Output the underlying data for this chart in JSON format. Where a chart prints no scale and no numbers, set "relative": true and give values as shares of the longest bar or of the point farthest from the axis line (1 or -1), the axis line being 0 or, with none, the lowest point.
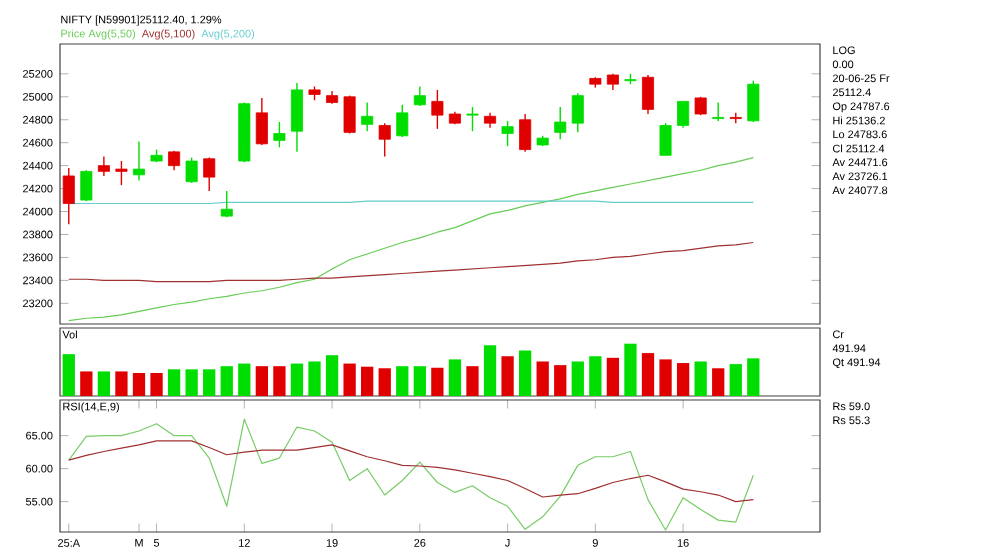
{
  "chart_data": [
    {
      "type": "candlestick",
      "title": "NIFTY [N59901]25112.40, 1.29%",
      "categories": [
        null,
        null,
        null,
        null,
        null,
        null,
        null,
        null,
        null,
        null,
        null,
        null,
        null,
        null,
        null,
        null,
        null,
        null,
        null,
        null,
        null,
        null,
        null,
        null,
        null,
        null,
        null,
        null,
        null,
        null,
        null,
        null,
        null,
        null,
        null,
        null,
        null,
        null,
        null,
        null
      ],
      "ohlc": [
        [
          24310,
          24380,
          23890,
          24070
        ],
        [
          24100,
          24360,
          24090,
          24350
        ],
        [
          24400,
          24480,
          24310,
          24350
        ],
        [
          24370,
          24440,
          24230,
          24350
        ],
        [
          24320,
          24610,
          24270,
          24370
        ],
        [
          24440,
          24540,
          24430,
          24490
        ],
        [
          24520,
          24530,
          24360,
          24400
        ],
        [
          24260,
          24470,
          24250,
          24440
        ],
        [
          24460,
          24470,
          24180,
          24300
        ],
        [
          23960,
          24180,
          23950,
          24020
        ],
        [
          24440,
          24950,
          24430,
          24940
        ],
        [
          24860,
          24990,
          24580,
          24590
        ],
        [
          24620,
          24780,
          24560,
          24680
        ],
        [
          24700,
          25120,
          24520,
          25060
        ],
        [
          25060,
          25090,
          24970,
          25020
        ],
        [
          25010,
          25050,
          24940,
          24950
        ],
        [
          25000,
          25010,
          24680,
          24690
        ],
        [
          24760,
          24950,
          24700,
          24830
        ],
        [
          24750,
          24770,
          24480,
          24630
        ],
        [
          24660,
          24930,
          24650,
          24860
        ],
        [
          24930,
          25090,
          24920,
          25010
        ],
        [
          24960,
          25060,
          24720,
          24840
        ],
        [
          24850,
          24870,
          24760,
          24770
        ],
        [
          24840,
          24910,
          24700,
          24850
        ],
        [
          24830,
          24860,
          24730,
          24770
        ],
        [
          24680,
          24790,
          24570,
          24740
        ],
        [
          24800,
          24850,
          24520,
          24540
        ],
        [
          24580,
          24660,
          24570,
          24640
        ],
        [
          24690,
          24910,
          24630,
          24780
        ],
        [
          24770,
          25030,
          24690,
          25010
        ],
        [
          25160,
          25170,
          25080,
          25110
        ],
        [
          25190,
          25200,
          25060,
          25110
        ],
        [
          25140,
          25200,
          25110,
          25150
        ],
        [
          25170,
          25190,
          24850,
          24890
        ],
        [
          24490,
          24770,
          24490,
          24750
        ],
        [
          24750,
          24960,
          24730,
          24960
        ],
        [
          24990,
          25000,
          24840,
          24850
        ],
        [
          24810,
          24950,
          24790,
          24820
        ],
        [
          24820,
          24860,
          24770,
          24810
        ],
        [
          24790,
          25140,
          24780,
          25110
        ]
      ],
      "colors": [
        "#e00000",
        "#00dd00",
        "#e00000",
        "#e00000",
        "#00dd00",
        "#00dd00",
        "#e00000",
        "#00dd00",
        "#e00000",
        "#00dd00",
        "#00dd00",
        "#e00000",
        "#00dd00",
        "#00dd00",
        "#e00000",
        "#e00000",
        "#e00000",
        "#00dd00",
        "#e00000",
        "#00dd00",
        "#00dd00",
        "#e00000",
        "#e00000",
        "#00dd00",
        "#e00000",
        "#00dd00",
        "#e00000",
        "#00dd00",
        "#00dd00",
        "#00dd00",
        "#e00000",
        "#e00000",
        "#00dd00",
        "#e00000",
        "#00dd00",
        "#00dd00",
        "#e00000",
        "#00dd00",
        "#e00000",
        "#00dd00"
      ],
      "series": [
        {
          "name": "Price Avg(5,50)",
          "type": "line",
          "color": "#66cc55",
          "values": [
            23050,
            23070,
            23080,
            23100,
            23130,
            23160,
            23190,
            23210,
            23240,
            23260,
            23290,
            23310,
            23340,
            23380,
            23410,
            23500,
            23580,
            23630,
            23680,
            23730,
            23770,
            23820,
            23860,
            23920,
            23980,
            24010,
            24050,
            24080,
            24110,
            24150,
            24180,
            24210,
            24240,
            24270,
            24300,
            24330,
            24360,
            24400,
            24430,
            24470
          ]
        },
        {
          "name": "Avg(5,100)",
          "type": "line",
          "color": "#a03030",
          "values": [
            23410,
            23410,
            23400,
            23400,
            23400,
            23390,
            23390,
            23390,
            23390,
            23400,
            23400,
            23400,
            23400,
            23410,
            23420,
            23420,
            23430,
            23440,
            23450,
            23460,
            23470,
            23480,
            23490,
            23500,
            23510,
            23520,
            23530,
            23540,
            23550,
            23570,
            23580,
            23600,
            23610,
            23630,
            23650,
            23660,
            23680,
            23700,
            23710,
            23730
          ]
        },
        {
          "name": "Avg(5,200)",
          "type": "line",
          "color": "#66cccc",
          "values": [
            24070,
            24070,
            24070,
            24070,
            24070,
            24070,
            24070,
            24070,
            24070,
            24080,
            24080,
            24080,
            24080,
            24080,
            24080,
            24080,
            24080,
            24090,
            24090,
            24090,
            24090,
            24090,
            24090,
            24090,
            24090,
            24090,
            24090,
            24090,
            24090,
            24090,
            24090,
            24080,
            24080,
            24080,
            24080,
            24080,
            24080,
            24080,
            24080,
            24080
          ]
        }
      ],
      "ylim": [
        23020,
        25460
      ],
      "yticks": [
        23200,
        23400,
        23600,
        23800,
        24000,
        24200,
        24400,
        24600,
        24800,
        25000,
        25200
      ],
      "tick_labels": "y",
      "annotations": [
        "LOG",
        "0.00",
        "20-06-25 Fr",
        "25112.4",
        "Op 24787.6",
        "Hi 25136.2",
        "Lo 24783.6",
        "Cl 25112.4",
        "Av 24471.6",
        "Av 23726.1",
        "Av 24077.8"
      ]
    },
    {
      "type": "bar",
      "title": "Vol",
      "relative": true,
      "categories": [
        null,
        null,
        null,
        null,
        null,
        null,
        null,
        null,
        null,
        null,
        null,
        null,
        null,
        null,
        null,
        null,
        null,
        null,
        null,
        null,
        null,
        null,
        null,
        null,
        null,
        null,
        null,
        null,
        null,
        null,
        null,
        null,
        null,
        null,
        null,
        null,
        null,
        null,
        null,
        null
      ],
      "values": [
        0.8,
        0.47,
        0.47,
        0.47,
        0.44,
        0.44,
        0.51,
        0.51,
        0.51,
        0.57,
        0.62,
        0.57,
        0.57,
        0.62,
        0.66,
        0.78,
        0.62,
        0.56,
        0.53,
        0.57,
        0.57,
        0.54,
        0.7,
        0.57,
        0.97,
        0.76,
        0.87,
        0.66,
        0.59,
        0.66,
        0.76,
        0.73,
        1,
        0.82,
        0.7,
        0.63,
        0.66,
        0.53,
        0.61,
        0.72
      ],
      "colors": [
        "#00dd00",
        "#e00000",
        "#00dd00",
        "#e00000",
        "#e00000",
        "#e00000",
        "#00dd00",
        "#00dd00",
        "#00dd00",
        "#00dd00",
        "#00dd00",
        "#e00000",
        "#e00000",
        "#00dd00",
        "#00dd00",
        "#00dd00",
        "#e00000",
        "#e00000",
        "#e00000",
        "#00dd00",
        "#00dd00",
        "#e00000",
        "#00dd00",
        "#e00000",
        "#00dd00",
        "#e00000",
        "#00dd00",
        "#e00000",
        "#e00000",
        "#00dd00",
        "#00dd00",
        "#e00000",
        "#00dd00",
        "#e00000",
        "#e00000",
        "#e00000",
        "#00dd00",
        "#e00000",
        "#00dd00",
        "#00dd00"
      ],
      "tick_labels": false,
      "annotations": [
        "Cr",
        "491.94",
        "Qt 491.94"
      ]
    },
    {
      "type": "line",
      "title": "RSI(14,E,9)",
      "categories": [
        "25:A",
        null,
        null,
        null,
        "M",
        "5",
        null,
        null,
        null,
        null,
        "12",
        null,
        null,
        null,
        null,
        "19",
        null,
        null,
        null,
        null,
        "26",
        null,
        null,
        null,
        null,
        "J",
        null,
        null,
        null,
        null,
        "9",
        null,
        null,
        null,
        null,
        "16",
        null,
        null,
        null,
        null
      ],
      "series": [
        {
          "color": "#77cc66",
          "values": [
            61.3,
            64.9,
            65,
            65,
            65.7,
            66.8,
            65,
            65,
            61.6,
            54.3,
            67.5,
            60.8,
            61.6,
            66.3,
            65.7,
            64,
            58.2,
            60,
            56,
            58.2,
            61,
            57.9,
            56.4,
            57.4,
            55.6,
            54.3,
            50.8,
            52.7,
            55.8,
            60.5,
            61.8,
            61.8,
            62.6,
            55.3,
            50.7,
            55.6,
            53.8,
            52.2,
            51.9,
            59
          ]
        },
        {
          "color": "#a03030",
          "values": [
            61.3,
            62,
            62.6,
            63.1,
            63.6,
            64.2,
            64.2,
            64.2,
            63.2,
            62.1,
            62.5,
            62.8,
            62.8,
            62.8,
            63.2,
            63.6,
            62.7,
            61.8,
            61.2,
            60.5,
            60.4,
            60.2,
            59.8,
            59.3,
            58.8,
            58.2,
            57,
            55.7,
            56,
            56.2,
            57,
            57.9,
            58.5,
            59,
            58,
            56.9,
            56.5,
            56,
            55,
            55.3
          ]
        }
      ],
      "ylim": [
        50.4,
        70.4
      ],
      "yticks": [
        {
          "value": 55,
          "label": "55.00"
        },
        {
          "value": 60,
          "label": "60.00"
        },
        {
          "value": 65,
          "label": "65.00"
        }
      ],
      "annotations": [
        "Rs 59.0",
        "Rs 55.3"
      ]
    }
  ]
}
